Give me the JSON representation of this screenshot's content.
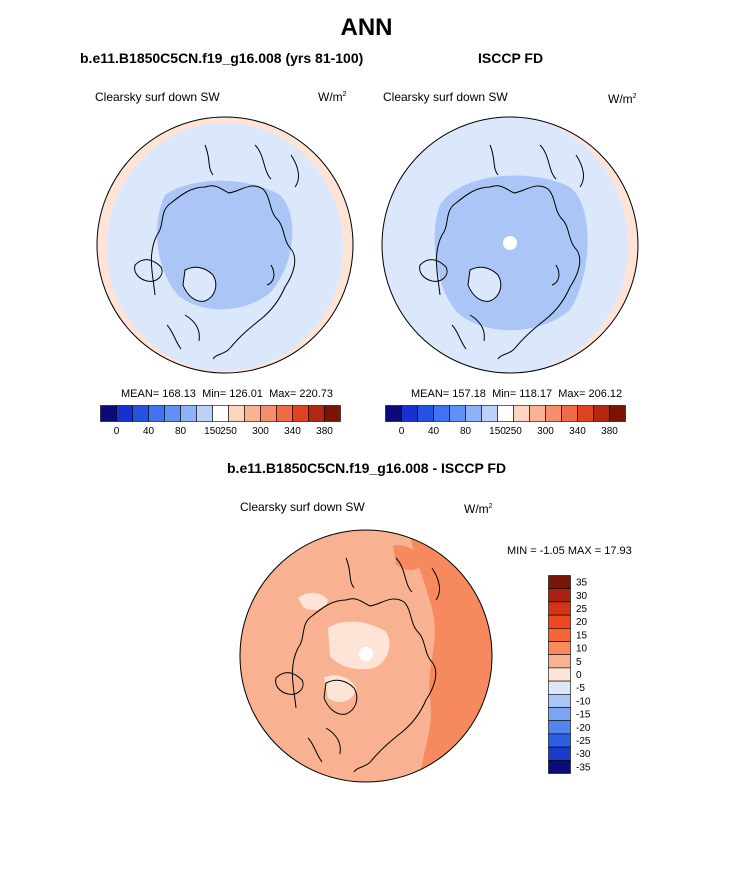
{
  "figure": {
    "season": "ANN"
  },
  "panels": [
    {
      "title": "b.e11.B1850C5CN.f19_g16.008 (yrs 81-100)",
      "variable": "Clearsky surf down SW",
      "units_base": "W/m",
      "units_exp": "2",
      "stats": {
        "mean_label": "MEAN=",
        "mean": "168.13",
        "min_label": "Min=",
        "min": "126.01",
        "max_label": "Max=",
        "max": "220.73"
      }
    },
    {
      "title": "ISCCP FD",
      "variable": "Clearsky surf down SW",
      "units_base": "W/m",
      "units_exp": "2",
      "stats": {
        "mean_label": "MEAN=",
        "mean": "157.18",
        "min_label": "Min=",
        "min": "118.17",
        "max_label": "Max=",
        "max": "206.12"
      }
    },
    {
      "title": "b.e11.B1850C5CN.f19_g16.008 - ISCCP FD",
      "variable": "Clearsky surf down SW",
      "units_base": "W/m",
      "units_exp": "2",
      "stats": {
        "min_label": "MIN =",
        "min": "-1.05",
        "max_label": "MAX =",
        "max": "17.93"
      }
    }
  ],
  "colorbar_main": {
    "ticks": [
      "0",
      "40",
      "80",
      "150",
      "250",
      "300",
      "340",
      "380"
    ],
    "colors": [
      "#0a0a7a",
      "#1a2fcf",
      "#2453e0",
      "#3f73f2",
      "#5f92f5",
      "#8fb1f7",
      "#bcd0fa",
      "#ffffff",
      "#fcd5c0",
      "#f9b394",
      "#f58e6c",
      "#f06a45",
      "#e0431f",
      "#b02811",
      "#7a1405"
    ]
  },
  "colorbar_diff": {
    "ticks": [
      "35",
      "30",
      "25",
      "20",
      "15",
      "10",
      "5",
      "0",
      "-5",
      "-10",
      "-15",
      "-20",
      "-25",
      "-30",
      "-35"
    ],
    "colors": [
      "#7a1405",
      "#a8220f",
      "#d23414",
      "#ec4a1e",
      "#f56634",
      "#f7895f",
      "#f8b291",
      "#fde4d6",
      "#dbe8fc",
      "#abc6f6",
      "#7da4f0",
      "#5584ec",
      "#2e5ee2",
      "#1a3cc8",
      "#0a0a7a"
    ]
  },
  "map_colors": {
    "ocean_warm": "#fde4d6",
    "pale_blue": "#dbe8fc",
    "mid_blue": "#abc6f6",
    "diff_base": "#f8b291",
    "diff_strong": "#f7895f",
    "diff_pale": "#fde4d6",
    "hole": "#ffffff"
  }
}
